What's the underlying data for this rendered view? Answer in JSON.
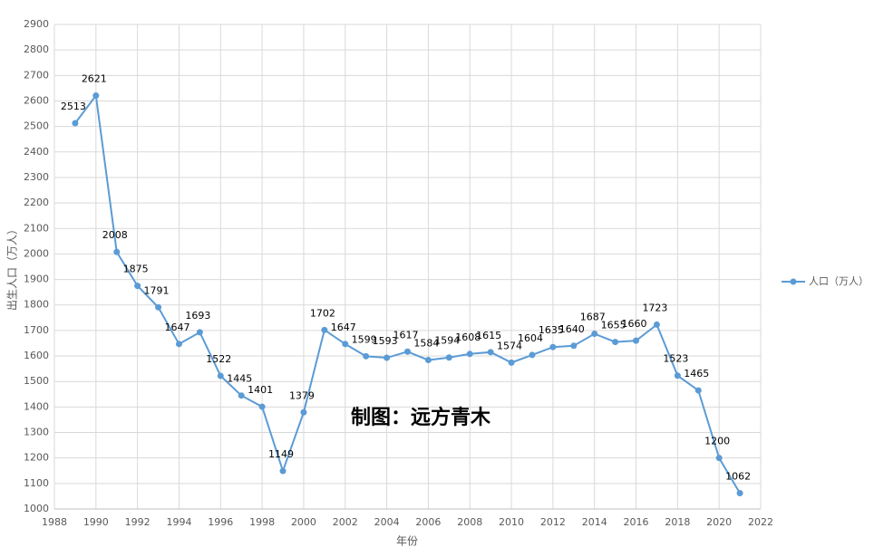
{
  "chart_data": {
    "type": "line",
    "xlabel": "年份",
    "ylabel": "出生人口（万人）",
    "annotation": "制图：远方青木",
    "x": [
      1989,
      1990,
      1991,
      1992,
      1993,
      1994,
      1995,
      1996,
      1997,
      1998,
      1999,
      2000,
      2001,
      2002,
      2003,
      2004,
      2005,
      2006,
      2007,
      2008,
      2009,
      2010,
      2011,
      2012,
      2013,
      2014,
      2015,
      2016,
      2017,
      2018,
      2019,
      2020,
      2021
    ],
    "series": [
      {
        "name": "人口（万人）",
        "color": "#5b9bd5",
        "values": [
          2513,
          2621,
          2008,
          1875,
          1791,
          1647,
          1693,
          1522,
          1445,
          1401,
          1149,
          1379,
          1702,
          1647,
          1599,
          1593,
          1617,
          1584,
          1594,
          1608,
          1615,
          1574,
          1604,
          1635,
          1640,
          1687,
          1655,
          1660,
          1723,
          1523,
          1465,
          1200,
          1062
        ]
      }
    ],
    "xlim": [
      1988,
      2022
    ],
    "xticks": [
      1988,
      1990,
      1992,
      1994,
      1996,
      1998,
      2000,
      2002,
      2004,
      2006,
      2008,
      2010,
      2012,
      2014,
      2016,
      2018,
      2020,
      2022
    ],
    "ylim": [
      1000,
      2900
    ],
    "yticks": [
      1000,
      1100,
      1200,
      1300,
      1400,
      1500,
      1600,
      1700,
      1800,
      1900,
      2000,
      2100,
      2200,
      2300,
      2400,
      2500,
      2600,
      2700,
      2800,
      2900
    ],
    "grid": true,
    "legend": "right"
  }
}
